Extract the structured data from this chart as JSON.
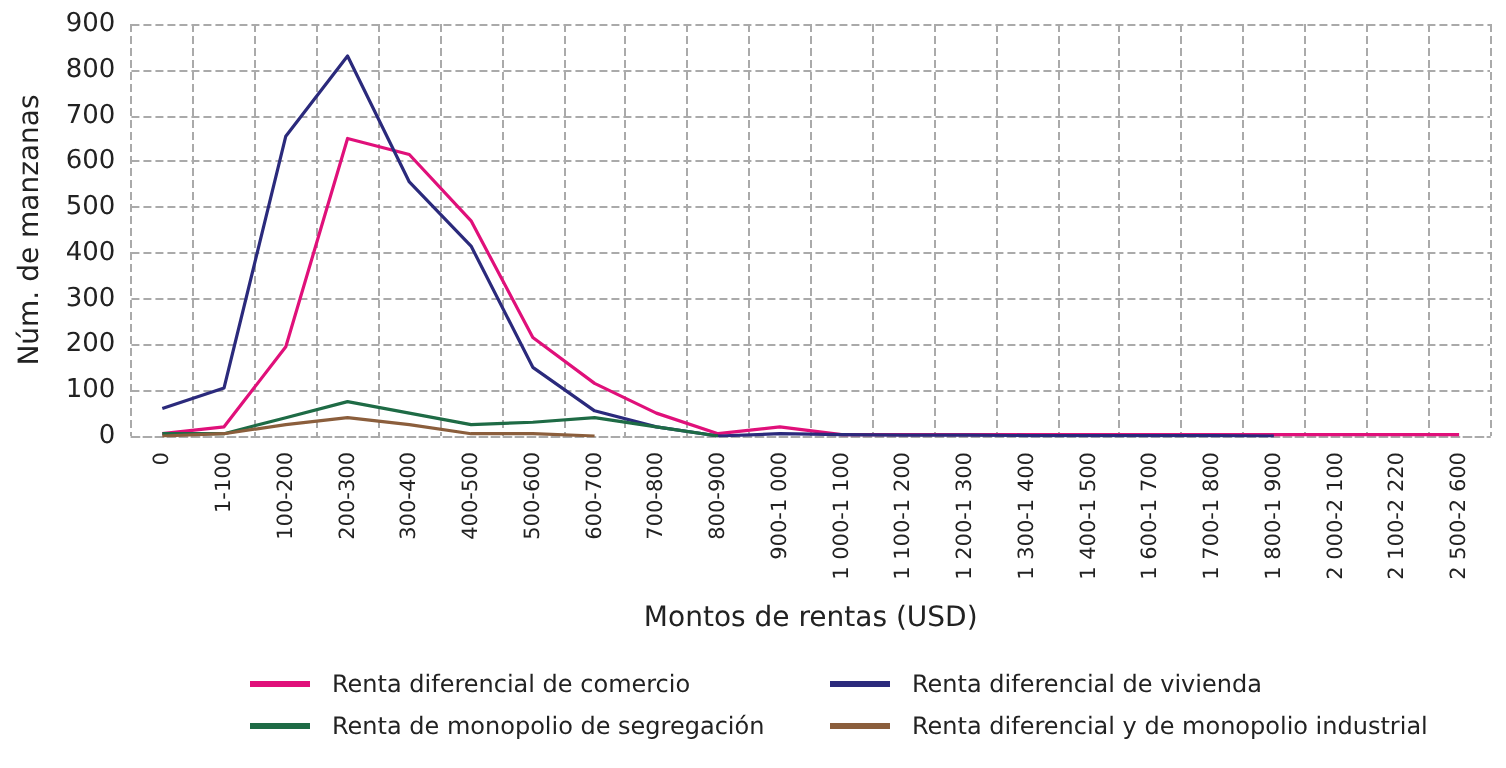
{
  "chart_data": {
    "type": "line",
    "xlabel": "Montos de rentas (USD)",
    "ylabel": "Núm. de manzanas",
    "categories": [
      "0",
      "1-100",
      "100-200",
      "200-300",
      "300-400",
      "400-500",
      "500-600",
      "600-700",
      "700-800",
      "800-900",
      "900-1 000",
      "1 000-1 100",
      "1 100-1 200",
      "1 200-1 300",
      "1 300-1 400",
      "1 400-1 500",
      "1 600-1 700",
      "1 700-1 800",
      "1 800-1 900",
      "2 000-2 100",
      "2 100-2 220",
      "2 500-2 600"
    ],
    "series": [
      {
        "name": "Renta diferencial de comercio",
        "color": "#e0107a",
        "values": [
          5,
          20,
          195,
          650,
          615,
          470,
          215,
          115,
          50,
          5,
          20,
          3,
          3,
          3,
          3,
          3,
          3,
          3,
          3,
          3,
          3,
          3
        ]
      },
      {
        "name": "Renta diferencial de vivienda",
        "color": "#2b2a7c",
        "values": [
          60,
          105,
          655,
          830,
          555,
          415,
          150,
          55,
          20,
          0,
          5,
          3,
          2,
          2,
          1,
          1,
          1,
          1,
          0,
          null,
          null,
          null
        ]
      },
      {
        "name": "Renta de monopolio de segregación",
        "color": "#1e6b45",
        "values": [
          5,
          5,
          40,
          75,
          50,
          25,
          30,
          40,
          20,
          0,
          null,
          null,
          null,
          null,
          null,
          null,
          null,
          null,
          null,
          null,
          null,
          null
        ]
      },
      {
        "name": "Renta diferencial y de monopolio industrial",
        "color": "#8b5e3c",
        "values": [
          0,
          5,
          25,
          40,
          25,
          5,
          5,
          0,
          null,
          null,
          null,
          null,
          null,
          null,
          null,
          null,
          null,
          null,
          null,
          null,
          null,
          null
        ]
      }
    ],
    "ylim": [
      0,
      900
    ],
    "yticks": [
      0,
      100,
      200,
      300,
      400,
      500,
      600,
      700,
      800,
      900
    ],
    "grid": true,
    "legend": "bottom",
    "marker": "none",
    "line_style": "solid"
  }
}
